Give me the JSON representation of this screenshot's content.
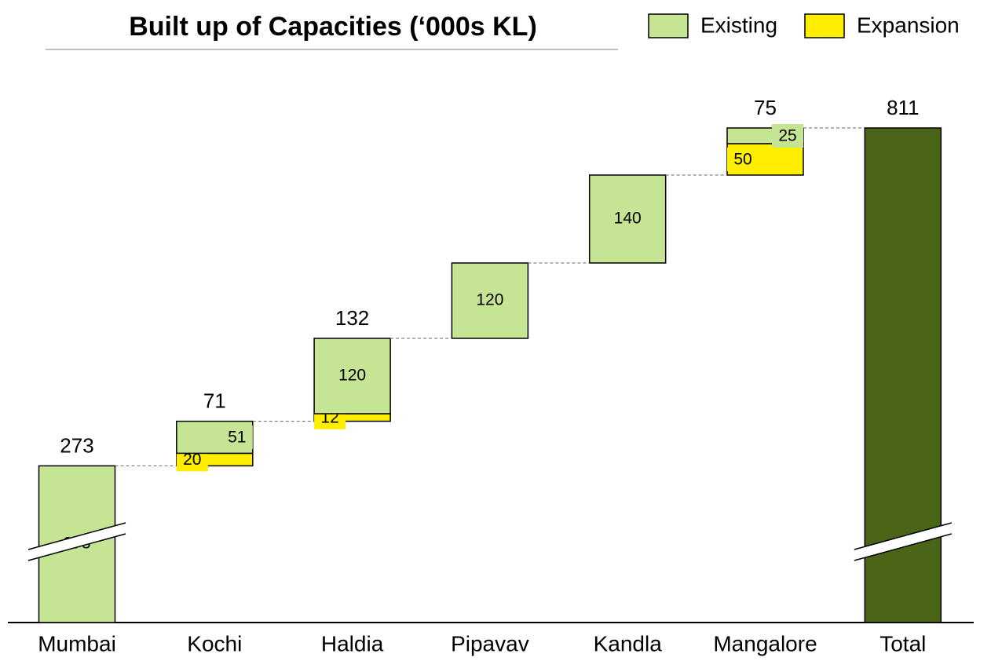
{
  "chart_data": {
    "type": "waterfall",
    "title": "Built up of Capacities (‘000s KL)",
    "categories": [
      "Mumbai",
      "Kochi",
      "Haldia",
      "Pipavav",
      "Kandla",
      "Mangalore",
      "Total"
    ],
    "series": [
      {
        "name": "Existing",
        "color": "#c5e494",
        "values": [
          273,
          51,
          120,
          120,
          140,
          25,
          null
        ]
      },
      {
        "name": "Expansion",
        "color": "#ffee00",
        "values": [
          null,
          20,
          12,
          null,
          null,
          50,
          null
        ]
      }
    ],
    "totals": [
      273,
      71,
      132,
      null,
      null,
      75,
      811
    ],
    "total_color": "#4a6418"
  }
}
